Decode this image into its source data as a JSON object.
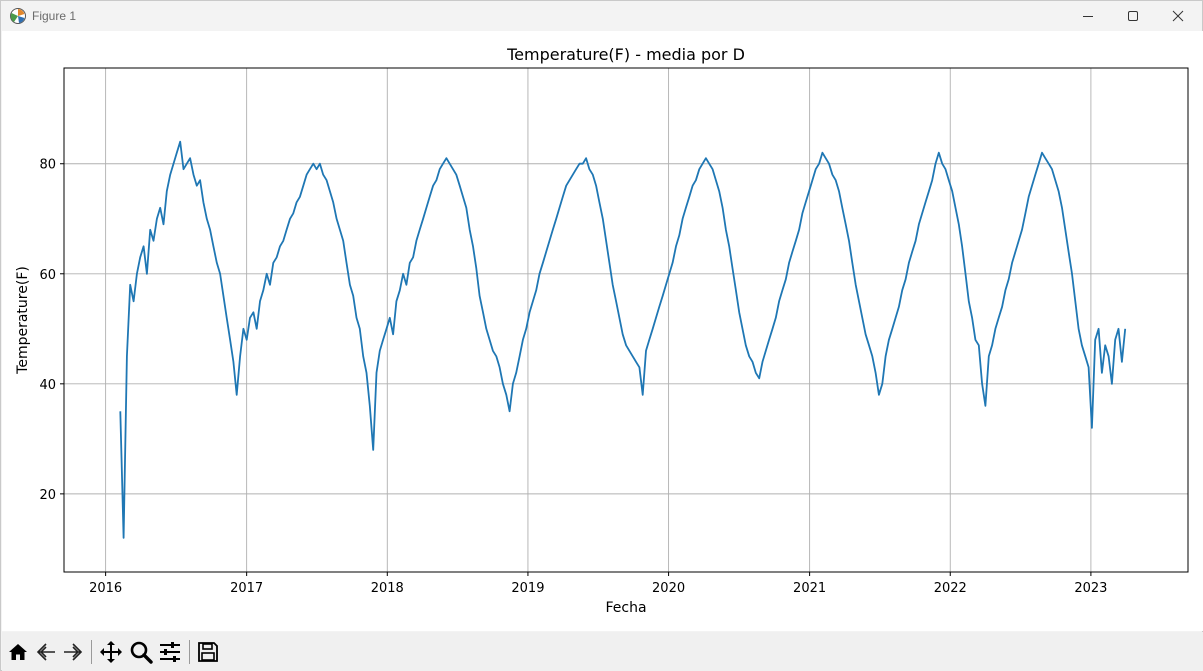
{
  "window": {
    "title": "Figure 1",
    "controls": [
      "minimize-icon",
      "maximize-icon",
      "close-icon"
    ]
  },
  "toolbar": {
    "tools": [
      "home-icon",
      "back-arrow-icon",
      "forward-arrow-icon",
      "pan-icon",
      "zoom-icon",
      "configure-subplots-icon",
      "save-icon"
    ]
  },
  "colors": {
    "line": "#1f77b4",
    "grid": "#b0b0b0"
  },
  "chart_data": {
    "type": "line",
    "title": "Temperature(F) - media por D",
    "xlabel": "Fecha",
    "ylabel": "Temperature(F)",
    "xlim": [
      "2015-09-15",
      "2023-09-10"
    ],
    "ylim": [
      5.8,
      97.4
    ],
    "xticks": [
      "2016",
      "2017",
      "2018",
      "2019",
      "2020",
      "2021",
      "2022",
      "2023"
    ],
    "yticks": [
      20,
      40,
      60,
      80
    ],
    "grid": true,
    "x_start": "2016-02-08",
    "x_end": "2023-03-31",
    "series": [
      {
        "frequency": "weekly (approximate daily mean)",
        "values": [
          35.0,
          12.0,
          45.0,
          58.0,
          55.0,
          60.0,
          63.0,
          65.0,
          60.0,
          68.0,
          66.0,
          70.0,
          72.0,
          69.0,
          75.0,
          78.0,
          80.0,
          82.0,
          84.0,
          79.0,
          80.0,
          81.0,
          78.0,
          76.0,
          77.0,
          73.0,
          70.0,
          68.0,
          65.0,
          62.0,
          60.0,
          56.0,
          52.0,
          48.0,
          44.0,
          38.0,
          45.0,
          50.0,
          48.0,
          52.0,
          53.0,
          50.0,
          55.0,
          57.0,
          60.0,
          58.0,
          62.0,
          63.0,
          65.0,
          66.0,
          68.0,
          70.0,
          71.0,
          73.0,
          74.0,
          76.0,
          78.0,
          79.0,
          80.0,
          79.0,
          80.0,
          78.0,
          77.0,
          75.0,
          73.0,
          70.0,
          68.0,
          66.0,
          62.0,
          58.0,
          56.0,
          52.0,
          50.0,
          45.0,
          42.0,
          36.0,
          28.0,
          42.0,
          46.0,
          48.0,
          50.0,
          52.0,
          49.0,
          55.0,
          57.0,
          60.0,
          58.0,
          62.0,
          63.0,
          66.0,
          68.0,
          70.0,
          72.0,
          74.0,
          76.0,
          77.0,
          79.0,
          80.0,
          81.0,
          80.0,
          79.0,
          78.0,
          76.0,
          74.0,
          72.0,
          68.0,
          65.0,
          61.0,
          56.0,
          53.0,
          50.0,
          48.0,
          46.0,
          45.0,
          43.0,
          40.0,
          38.0,
          35.0,
          40.0,
          42.0,
          45.0,
          48.0,
          50.0,
          53.0,
          55.0,
          57.0,
          60.0,
          62.0,
          64.0,
          66.0,
          68.0,
          70.0,
          72.0,
          74.0,
          76.0,
          77.0,
          78.0,
          79.0,
          80.0,
          80.0,
          81.0,
          79.0,
          78.0,
          76.0,
          73.0,
          70.0,
          66.0,
          62.0,
          58.0,
          55.0,
          52.0,
          49.0,
          47.0,
          46.0,
          45.0,
          44.0,
          43.0,
          38.0,
          46.0,
          48.0,
          50.0,
          52.0,
          54.0,
          56.0,
          58.0,
          60.0,
          62.0,
          65.0,
          67.0,
          70.0,
          72.0,
          74.0,
          76.0,
          77.0,
          79.0,
          80.0,
          81.0,
          80.0,
          79.0,
          77.0,
          75.0,
          72.0,
          68.0,
          65.0,
          61.0,
          57.0,
          53.0,
          50.0,
          47.0,
          45.0,
          44.0,
          42.0,
          41.0,
          44.0,
          46.0,
          48.0,
          50.0,
          52.0,
          55.0,
          57.0,
          59.0,
          62.0,
          64.0,
          66.0,
          68.0,
          71.0,
          73.0,
          75.0,
          77.0,
          79.0,
          80.0,
          82.0,
          81.0,
          80.0,
          78.0,
          77.0,
          75.0,
          72.0,
          69.0,
          66.0,
          62.0,
          58.0,
          55.0,
          52.0,
          49.0,
          47.0,
          45.0,
          42.0,
          38.0,
          40.0,
          45.0,
          48.0,
          50.0,
          52.0,
          54.0,
          57.0,
          59.0,
          62.0,
          64.0,
          66.0,
          69.0,
          71.0,
          73.0,
          75.0,
          77.0,
          80.0,
          82.0,
          80.0,
          79.0,
          77.0,
          75.0,
          72.0,
          69.0,
          65.0,
          60.0,
          55.0,
          52.0,
          48.0,
          47.0,
          40.0,
          36.0,
          45.0,
          47.0,
          50.0,
          52.0,
          54.0,
          57.0,
          59.0,
          62.0,
          64.0,
          66.0,
          68.0,
          71.0,
          74.0,
          76.0,
          78.0,
          80.0,
          82.0,
          81.0,
          80.0,
          79.0,
          77.0,
          75.0,
          72.0,
          68.0,
          64.0,
          60.0,
          55.0,
          50.0,
          47.0,
          45.0,
          43.0,
          32.0,
          48.0,
          50.0,
          42.0,
          47.0,
          45.0,
          40.0,
          48.0,
          50.0,
          44.0,
          50.0
        ]
      }
    ]
  }
}
